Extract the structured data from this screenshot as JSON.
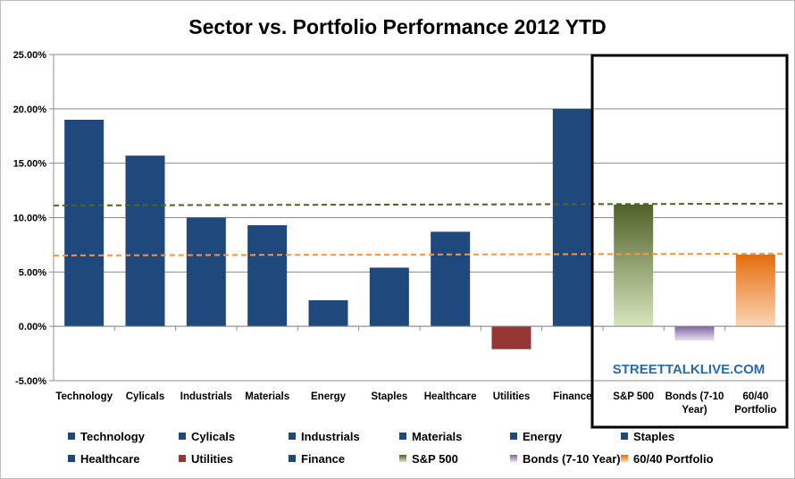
{
  "chart_data": {
    "type": "bar",
    "title": "Sector vs. Portfolio Performance 2012 YTD",
    "xlabel": "",
    "ylabel": "",
    "ylim": [
      -0.05,
      0.25
    ],
    "yticks": [
      "25.00%",
      "20.00%",
      "15.00%",
      "10.00%",
      "5.00%",
      "0.00%",
      "-5.00%"
    ],
    "grid": true,
    "legend_position": "bottom",
    "categories": [
      "Technology",
      "Cylicals",
      "Industrials",
      "Materials",
      "Energy",
      "Staples",
      "Healthcare",
      "Utilities",
      "Finance",
      "S&P 500",
      "Bonds (7-10 Year)",
      "60/40 Portfolio"
    ],
    "category_labels": [
      [
        "Technology"
      ],
      [
        "Cylicals"
      ],
      [
        "Industrials"
      ],
      [
        "Materials"
      ],
      [
        "Energy"
      ],
      [
        "Staples"
      ],
      [
        "Healthcare"
      ],
      [
        "Utilities"
      ],
      [
        "Finance"
      ],
      [
        "S&P 500"
      ],
      [
        "Bonds (7-10",
        "Year)"
      ],
      [
        "60/40",
        "Portfolio"
      ]
    ],
    "values": [
      0.19,
      0.157,
      0.1,
      0.093,
      0.024,
      0.054,
      0.087,
      -0.021,
      0.2,
      0.112,
      -0.013,
      0.066
    ],
    "legend": [
      "Technology",
      "Cylicals",
      "Industrials",
      "Materials",
      "Energy",
      "Staples",
      "Healthcare",
      "Utilities",
      "Finance",
      "S&P 500",
      "Bonds (7-10 Year)",
      "60/40 Portfolio"
    ],
    "reference_lines": [
      {
        "value": 0.112,
        "color": "#4f6228"
      },
      {
        "value": 0.066,
        "color": "#f79646"
      }
    ],
    "colors": {
      "sector": "#1f497d",
      "utilities": "#953735",
      "sp500_top": "#4f6228",
      "sp500_bottom": "#d7e4bd",
      "bonds_top": "#8064a2",
      "bonds_bottom": "#e6e0ec",
      "portfolio_top": "#e46c0a",
      "portfolio_bottom": "#fcd5b5"
    },
    "highlight_box": {
      "categories": [
        "S&P 500",
        "Bonds (7-10 Year)",
        "60/40 Portfolio"
      ]
    },
    "watermark": "STREETTALKLIVE.COM"
  }
}
